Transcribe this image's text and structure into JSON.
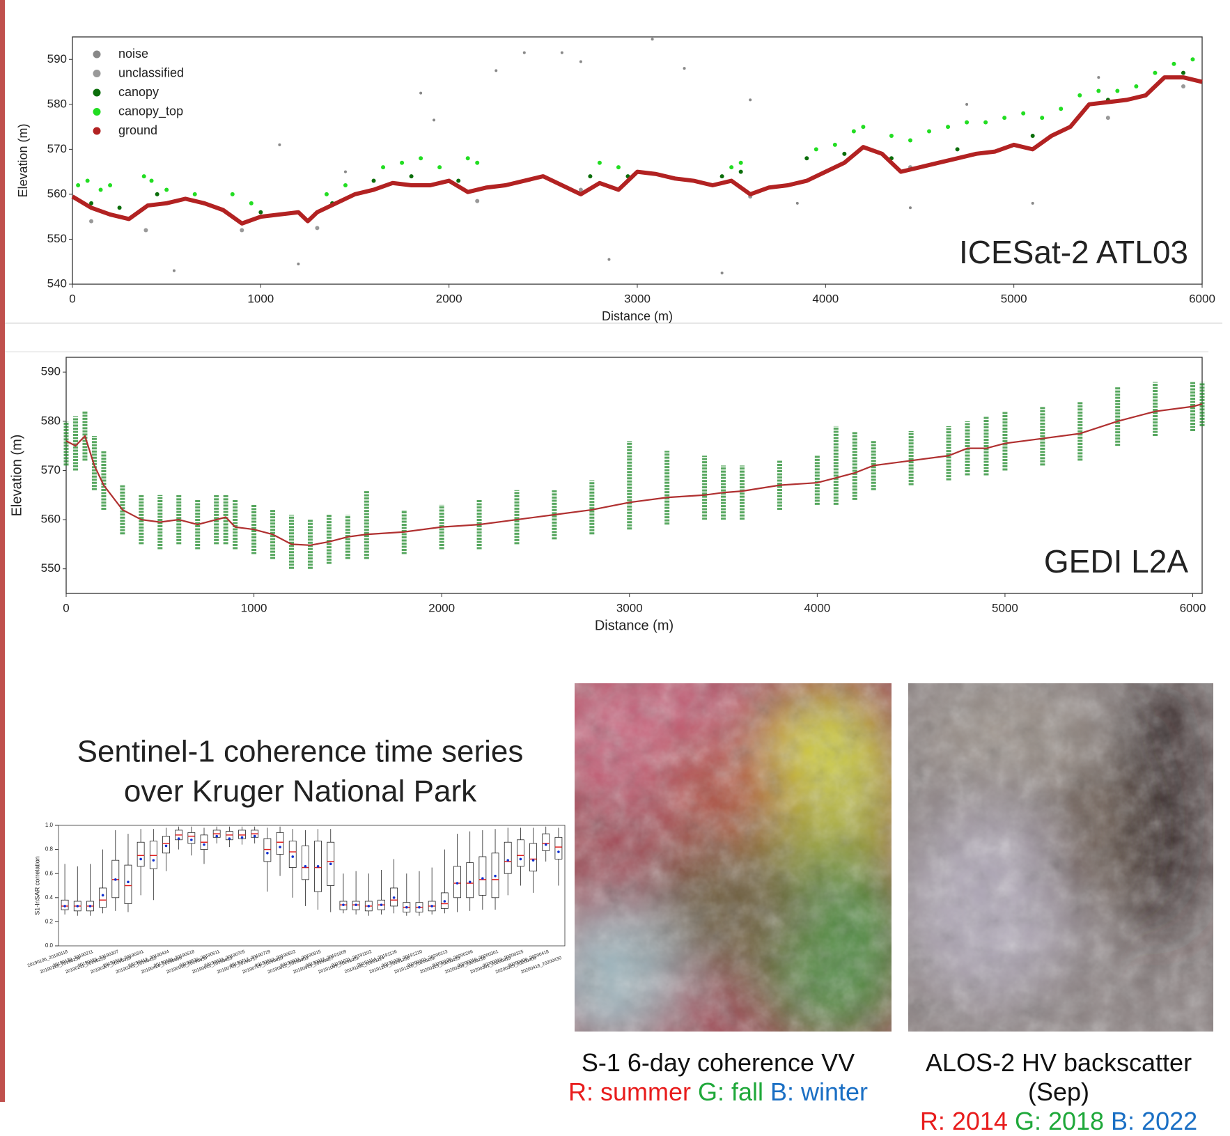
{
  "chart_data": [
    {
      "type": "scatter",
      "xlabel": "Distance (m)",
      "ylabel": "Elevation (m)",
      "annotation": "ICESat-2 ATL03",
      "legend": "upper left",
      "grid": false,
      "xlim": [
        0,
        6000
      ],
      "xticks": [
        0,
        1000,
        2000,
        3000,
        4000,
        5000,
        6000
      ],
      "ylim": [
        540,
        595
      ],
      "yticks": [
        540,
        550,
        560,
        570,
        580,
        590
      ],
      "series": [
        {
          "name": "noise",
          "color": "#888888",
          "x": [
            1100,
            1200,
            1450,
            1850,
            1920,
            2250,
            2400,
            2600,
            2700,
            2850,
            3250,
            3450,
            3600,
            3850,
            4450,
            4750,
            5100,
            5450,
            540,
            3080
          ],
          "values": [
            571,
            544.5,
            565,
            582.5,
            576.5,
            587.5,
            591.5,
            591.5,
            589.5,
            545.5,
            588,
            542.5,
            581,
            558,
            557,
            580,
            558,
            586,
            543,
            594.5
          ]
        },
        {
          "name": "unclassified",
          "color": "#999999",
          "x": [
            100,
            390,
            900,
            1300,
            2150,
            2700,
            4450,
            5500,
            5900,
            3600
          ],
          "values": [
            554,
            552,
            552,
            552.5,
            558.5,
            561,
            566,
            577,
            584,
            559.5
          ]
        },
        {
          "name": "canopy",
          "color": "#0b6e0b",
          "x": [
            100,
            250,
            450,
            700,
            1000,
            1380,
            1600,
            1800,
            2050,
            2300,
            2750,
            2950,
            3450,
            3550,
            3900,
            4100,
            4350,
            4700,
            5100,
            5500,
            5900
          ],
          "values": [
            558,
            557,
            560,
            558,
            556,
            558,
            563,
            564,
            563,
            562,
            564,
            564,
            564,
            565,
            568,
            569,
            568,
            570,
            573,
            581,
            587
          ]
        },
        {
          "name": "canopy_top",
          "color": "#22dd22",
          "x": [
            30,
            80,
            150,
            200,
            380,
            420,
            500,
            650,
            850,
            950,
            1350,
            1450,
            1650,
            1750,
            1850,
            1950,
            2100,
            2150,
            2800,
            2900,
            3550,
            3500,
            3950,
            4050,
            4150,
            4200,
            4350,
            4450,
            4550,
            4650,
            4750,
            4850,
            4950,
            5050,
            5150,
            5250,
            5350,
            5450,
            5550,
            5650,
            5750,
            5850,
            5950
          ],
          "values": [
            562,
            563,
            561,
            562,
            564,
            563,
            561,
            560,
            560,
            558,
            560,
            562,
            566,
            567,
            568,
            566,
            568,
            567,
            567,
            566,
            567,
            566,
            570,
            571,
            574,
            575,
            573,
            572,
            574,
            575,
            576,
            576,
            577,
            578,
            577,
            579,
            582,
            583,
            583,
            584,
            587,
            589,
            590
          ]
        },
        {
          "name": "ground",
          "color": "#b22222",
          "style": "line",
          "x": [
            0,
            100,
            200,
            300,
            400,
            500,
            600,
            700,
            800,
            900,
            1000,
            1100,
            1200,
            1250,
            1300,
            1400,
            1500,
            1600,
            1700,
            1800,
            1900,
            2000,
            2100,
            2200,
            2300,
            2400,
            2500,
            2600,
            2700,
            2800,
            2900,
            3000,
            3100,
            3200,
            3300,
            3400,
            3500,
            3600,
            3700,
            3800,
            3900,
            4000,
            4100,
            4200,
            4300,
            4400,
            4500,
            4600,
            4700,
            4800,
            4900,
            5000,
            5100,
            5200,
            5300,
            5400,
            5500,
            5600,
            5700,
            5800,
            5900,
            6000
          ],
          "values": [
            559.5,
            557,
            555.5,
            554.5,
            557.5,
            558,
            559,
            558,
            556.5,
            553.5,
            555,
            555.5,
            556,
            554,
            556,
            558,
            560,
            561,
            562.5,
            562,
            562,
            563,
            560.5,
            561.5,
            562,
            563,
            564,
            562,
            560,
            562.5,
            561,
            565,
            564.5,
            563.5,
            563,
            562,
            563,
            560,
            561.5,
            562,
            563,
            565,
            567,
            570.5,
            569,
            565,
            566,
            567,
            568,
            569,
            569.5,
            571,
            570,
            573,
            575,
            580,
            580.5,
            581,
            582,
            586,
            586,
            585
          ]
        }
      ]
    },
    {
      "type": "line",
      "xlabel": "Distance (m)",
      "ylabel": "Elevation (m)",
      "annotation": "GEDI L2A",
      "xlim": [
        0,
        6050
      ],
      "xticks": [
        0,
        1000,
        2000,
        3000,
        4000,
        5000,
        6000
      ],
      "ylim": [
        545,
        593
      ],
      "yticks": [
        550,
        560,
        570,
        580,
        590
      ],
      "x": [
        0,
        50,
        100,
        150,
        200,
        300,
        400,
        500,
        600,
        700,
        800,
        850,
        900,
        1000,
        1100,
        1200,
        1300,
        1400,
        1500,
        1600,
        1800,
        2000,
        2200,
        2400,
        2600,
        2800,
        3000,
        3200,
        3400,
        3500,
        3600,
        3800,
        4000,
        4100,
        4200,
        4300,
        4500,
        4700,
        4800,
        4900,
        5000,
        5200,
        5400,
        5600,
        5800,
        6000,
        6050
      ],
      "series": [
        {
          "color": "#b03030",
          "values": [
            576,
            575,
            577,
            571,
            567,
            562,
            560,
            559.5,
            560,
            559,
            560,
            560.5,
            558.5,
            558,
            557,
            555,
            554.8,
            555.5,
            556.5,
            557,
            557.5,
            558.5,
            559,
            560,
            561,
            562,
            563.5,
            564.5,
            565,
            565.5,
            565.8,
            567,
            567.5,
            568.5,
            569.5,
            571,
            572,
            573,
            574.5,
            574.5,
            575.5,
            576.5,
            577.5,
            580,
            582,
            583,
            583.5
          ]
        }
      ],
      "range": {
        "color": "#1f8a2a",
        "low": [
          571,
          570,
          572,
          566,
          562,
          557,
          555,
          554,
          555,
          554,
          555,
          555,
          554,
          553,
          552,
          550,
          550,
          551,
          552,
          552,
          553,
          554,
          554,
          555,
          556,
          557,
          558,
          559,
          560,
          560,
          560,
          562,
          563,
          563,
          564,
          566,
          567,
          568,
          569,
          569,
          570,
          571,
          572,
          575,
          577,
          578,
          579
        ],
        "high": [
          580,
          581,
          582,
          577,
          574,
          567,
          565,
          565,
          565,
          564,
          565,
          565,
          564,
          563,
          562,
          561,
          560,
          561,
          561,
          566,
          562,
          563,
          564,
          566,
          566,
          568,
          576,
          574,
          573,
          571,
          571,
          572,
          573,
          579,
          578,
          576,
          578,
          579,
          580,
          581,
          582,
          583,
          584,
          587,
          588,
          588,
          588
        ]
      }
    },
    {
      "type": "box",
      "title": [
        "Sentinel-1 coherence time series",
        "over Kruger National Park"
      ],
      "ylabel": "S1-InSAR correlation",
      "ylim": [
        0,
        1
      ],
      "yticks": [
        {
          "value": 0,
          "label": "0.0"
        },
        0.2,
        0.4,
        0.6,
        0.8,
        {
          "value": 1,
          "label": "1.0"
        }
      ],
      "categories": [
        "20190106_20190118",
        "20190118_20190130",
        "20190130_20190211",
        "20190211_20190223",
        "20190223_20190307",
        "20190307_20190319",
        "20190319_20190331",
        "20190331_20190412",
        "20190412_20190424",
        "20190424_20190506",
        "20190506_20190518",
        "20190518_20190530",
        "20190530_20190611",
        "20190611_20190623",
        "20190623_20190705",
        "20190705_20190717",
        "20190717_20190729",
        "20190729_20190810",
        "20190810_20190822",
        "20190822_20190903",
        "20190903_20190915",
        "20190915_20190927",
        "20190927_20191009",
        "20191009_20191021",
        "20191021_20191102",
        "20191102_20191114",
        "20191114_20191126",
        "20191126_20191208",
        "20191208_20191220",
        "20191220_20200101",
        "20200101_20200113",
        "20200113_20200125",
        "20200125_20200206",
        "20200206_20200218",
        "20200218_20200301",
        "20200301_20200313",
        "20200313_20200325",
        "20200325_20200406",
        "20200406_20200418",
        "20200418_20200430"
      ],
      "median": [
        0.33,
        0.33,
        0.33,
        0.38,
        0.55,
        0.5,
        0.75,
        0.75,
        0.85,
        0.92,
        0.91,
        0.86,
        0.93,
        0.92,
        0.92,
        0.93,
        0.8,
        0.86,
        0.78,
        0.65,
        0.65,
        0.7,
        0.34,
        0.34,
        0.33,
        0.34,
        0.38,
        0.32,
        0.32,
        0.33,
        0.35,
        0.52,
        0.52,
        0.55,
        0.55,
        0.7,
        0.75,
        0.72,
        0.85,
        0.82
      ],
      "q1": [
        0.3,
        0.29,
        0.29,
        0.32,
        0.4,
        0.35,
        0.66,
        0.64,
        0.77,
        0.88,
        0.85,
        0.8,
        0.9,
        0.88,
        0.89,
        0.9,
        0.7,
        0.76,
        0.65,
        0.55,
        0.45,
        0.5,
        0.3,
        0.3,
        0.29,
        0.3,
        0.33,
        0.28,
        0.28,
        0.29,
        0.31,
        0.4,
        0.4,
        0.42,
        0.4,
        0.6,
        0.66,
        0.62,
        0.79,
        0.72
      ],
      "q3": [
        0.38,
        0.37,
        0.37,
        0.48,
        0.71,
        0.67,
        0.86,
        0.87,
        0.91,
        0.96,
        0.94,
        0.92,
        0.96,
        0.95,
        0.96,
        0.96,
        0.89,
        0.94,
        0.87,
        0.83,
        0.87,
        0.86,
        0.37,
        0.37,
        0.37,
        0.38,
        0.48,
        0.36,
        0.36,
        0.37,
        0.44,
        0.66,
        0.69,
        0.74,
        0.77,
        0.86,
        0.88,
        0.85,
        0.93,
        0.9
      ],
      "whislo": [
        0.26,
        0.25,
        0.25,
        0.27,
        0.29,
        0.28,
        0.42,
        0.38,
        0.62,
        0.8,
        0.75,
        0.68,
        0.85,
        0.82,
        0.84,
        0.85,
        0.45,
        0.58,
        0.4,
        0.33,
        0.3,
        0.28,
        0.27,
        0.26,
        0.25,
        0.26,
        0.27,
        0.25,
        0.25,
        0.26,
        0.27,
        0.28,
        0.29,
        0.3,
        0.3,
        0.42,
        0.5,
        0.44,
        0.7,
        0.5
      ],
      "whishi": [
        0.68,
        0.66,
        0.68,
        0.8,
        0.96,
        0.93,
        0.97,
        0.97,
        0.98,
        0.99,
        0.99,
        0.98,
        0.99,
        0.99,
        0.99,
        0.99,
        0.98,
        0.99,
        0.97,
        0.96,
        0.97,
        0.97,
        0.6,
        0.62,
        0.6,
        0.63,
        0.72,
        0.6,
        0.62,
        0.65,
        0.8,
        0.93,
        0.95,
        0.96,
        0.97,
        0.98,
        0.98,
        0.98,
        0.99,
        0.98
      ],
      "mean": [
        0.33,
        0.33,
        0.33,
        0.42,
        0.55,
        0.53,
        0.72,
        0.71,
        0.83,
        0.89,
        0.88,
        0.84,
        0.91,
        0.89,
        0.9,
        0.91,
        0.77,
        0.82,
        0.74,
        0.66,
        0.66,
        0.68,
        0.34,
        0.34,
        0.33,
        0.34,
        0.4,
        0.32,
        0.32,
        0.33,
        0.37,
        0.52,
        0.53,
        0.56,
        0.58,
        0.71,
        0.72,
        0.71,
        0.84,
        0.78
      ],
      "median_color": "#e02020",
      "mean_color": "#1030d0"
    }
  ],
  "captions": [
    {
      "title": "S-1 6-day coherence VV",
      "channels": [
        {
          "label": "R: summer",
          "color": "#e81c1c"
        },
        {
          "label": "G: fall",
          "color": "#1fa83a"
        },
        {
          "label": "B: winter",
          "color": "#1a6fc4"
        }
      ]
    },
    {
      "title": "ALOS-2 HV backscatter (Sep)",
      "channels": [
        {
          "label": "R: 2014",
          "color": "#e81c1c"
        },
        {
          "label": "G: 2018",
          "color": "#1fa83a"
        },
        {
          "label": "B: 2022",
          "color": "#1a6fc4"
        }
      ]
    }
  ]
}
